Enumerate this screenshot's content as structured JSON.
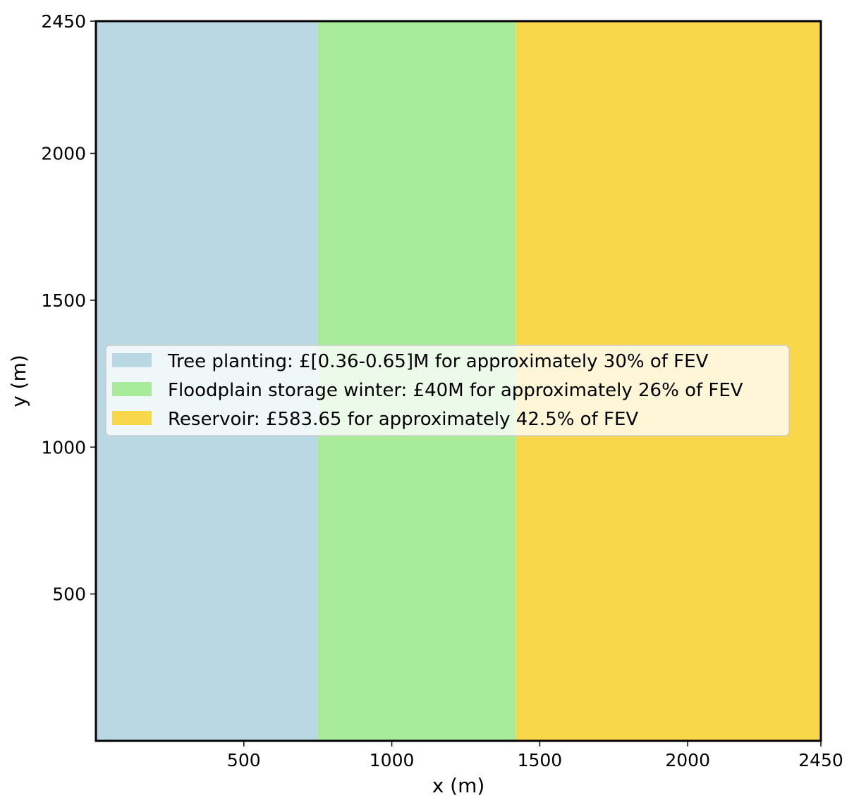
{
  "chart_data": {
    "type": "bar",
    "title": "",
    "xlabel": "x (m)",
    "ylabel": "y (m)",
    "xlim": [
      0,
      2450
    ],
    "ylim": [
      0,
      2450
    ],
    "grid": false,
    "legend_position": "center",
    "series": [
      {
        "name": "Tree planting: £[0.36-0.65]M for approximately 30% of FEV",
        "x_start": 0,
        "x_end": 750,
        "y_start": 0,
        "y_end": 2450,
        "color": "#b9d8e3"
      },
      {
        "name": "Floodplain storage winter: £40M for approximately 26% of FEV",
        "x_start": 750,
        "x_end": 1420,
        "y_start": 0,
        "y_end": 2450,
        "color": "#a8eb9a"
      },
      {
        "name": "Reservoir: £583.65 for approximately 42.5% of FEV",
        "x_start": 1420,
        "x_end": 2450,
        "y_start": 0,
        "y_end": 2450,
        "color": "#f8d74b"
      }
    ],
    "xticks": [
      {
        "value": 500,
        "label": "500"
      },
      {
        "value": 1000,
        "label": "1000"
      },
      {
        "value": 1500,
        "label": "1500"
      },
      {
        "value": 2000,
        "label": "2000"
      },
      {
        "value": 2450,
        "label": "2450"
      }
    ],
    "yticks": [
      {
        "value": 500,
        "label": "500"
      },
      {
        "value": 1000,
        "label": "1000"
      },
      {
        "value": 1500,
        "label": "1500"
      },
      {
        "value": 2000,
        "label": "2000"
      },
      {
        "value": 2450,
        "label": "2450"
      }
    ]
  }
}
